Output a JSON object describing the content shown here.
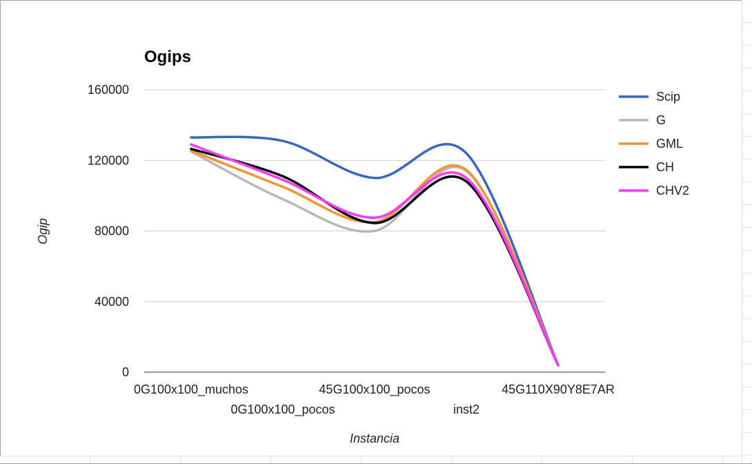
{
  "chart_data": {
    "type": "line",
    "title": "Ogips",
    "xlabel": "Instancia",
    "ylabel": "Ogip",
    "categories": [
      "0G100x100_muchos",
      "0G100x100_pocos",
      "45G100x100_pocos",
      "inst2",
      "45G110X90Y8E7AR"
    ],
    "ylim": [
      0,
      160000
    ],
    "yticks": [
      "0",
      "40000",
      "80000",
      "120000",
      "160000"
    ],
    "grid": true,
    "smooth": true,
    "legend_position": "right",
    "series": [
      {
        "name": "Scip",
        "color": "#3366cc",
        "values": [
          133000,
          131000,
          110000,
          124000,
          4000
        ]
      },
      {
        "name": "G",
        "color": "#b7b7b7",
        "values": [
          125000,
          98000,
          80000,
          114000,
          4000
        ]
      },
      {
        "name": "GML",
        "color": "#f6932e",
        "values": [
          125500,
          105000,
          85000,
          114500,
          4000
        ]
      },
      {
        "name": "CH",
        "color": "#000000",
        "values": [
          126500,
          111000,
          84500,
          108000,
          4000
        ]
      },
      {
        "name": "CHV2",
        "color": "#ff33ff",
        "values": [
          129000,
          109000,
          87500,
          110000,
          4000
        ]
      }
    ]
  }
}
